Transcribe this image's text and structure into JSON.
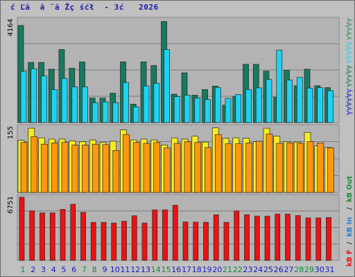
{
  "window": {
    "title": "ć Ľă  ă ¨ă Žç śćł  - 3ć   2026"
  },
  "chart_data": {
    "type": "bar",
    "categories": [
      "1",
      "2",
      "3",
      "4",
      "5",
      "6",
      "7",
      "8",
      "9",
      "10",
      "11",
      "12",
      "13",
      "14",
      "15",
      "16",
      "17",
      "18",
      "19",
      "20",
      "21",
      "22",
      "23",
      "24",
      "25",
      "26",
      "27",
      "28",
      "29",
      "30",
      "31"
    ],
    "weekend_categories": [
      "1",
      "7",
      "8",
      "14",
      "15",
      "21",
      "22",
      "28",
      "29"
    ],
    "panels": [
      {
        "max_label": "4164",
        "ylim": [
          0,
          4164
        ],
        "series": [
          {
            "color": "#177a60",
            "values": [
              4000,
              2480,
              2480,
              2200,
              3010,
              2240,
              2500,
              1010,
              1010,
              1210,
              2500,
              760,
              2500,
              2350,
              4164,
              1170,
              2050,
              1130,
              1360,
              1500,
              720,
              1080,
              2400,
              2400,
              2120,
              1050,
              2150,
              1520,
              2200,
              1520,
              1440
            ]
          },
          {
            "color": "#1ed3f2",
            "values": [
              2110,
              2220,
              1920,
              1360,
              1820,
              1470,
              1470,
              820,
              850,
              820,
              1650,
              650,
              1510,
              1620,
              3010,
              1070,
              1130,
              1010,
              950,
              1450,
              1000,
              1150,
              1360,
              1430,
              1780,
              2990,
              1750,
              1860,
              1420,
              1440,
              1310
            ]
          }
        ]
      },
      {
        "max_label": "155",
        "ylim": [
          0,
          155
        ],
        "series": [
          {
            "color": "#f7ec22",
            "values": [
              124,
              153,
              130,
              127,
              127,
              123,
              121,
              125,
              119,
              122,
              149,
              125,
              127,
              125,
              113,
              130,
              127,
              134,
              120,
              154,
              129,
              130,
              129,
              121,
              153,
              134,
              121,
              120,
              143,
              111,
              107
            ]
          },
          {
            "color": "#ff9810",
            "values": [
              119,
              133,
              115,
              118,
              119,
              113,
              113,
              115,
              114,
              100,
              138,
              119,
              117,
              119,
              106,
              117,
              121,
              119,
              107,
              138,
              116,
              116,
              118,
              122,
              139,
              117,
              118,
              117,
              121,
              118,
              106
            ]
          }
        ]
      },
      {
        "max_label": "6751",
        "ylim": [
          0,
          6751
        ],
        "series": [
          {
            "color": "#ee1111",
            "values": [
              6751,
              5300,
              5070,
              5070,
              5450,
              6000,
              5130,
              4060,
              4060,
              3990,
              4180,
              4770,
              3990,
              5400,
              5400,
              5890,
              4110,
              4090,
              4070,
              4870,
              4070,
              5280,
              4880,
              4730,
              4730,
              4950,
              4950,
              4800,
              4540,
              4540,
              4580
            ]
          }
        ]
      }
    ],
    "legends": {
      "top": [
        "ĂĄÂĄÂ",
        "ĂĄÂĄÂ",
        "ĂĄÂĄÂ",
        "ĂĄÂĄÂĂ"
      ],
      "bottom": [
        "kB F",
        "/",
        "kB In",
        "/",
        "kB Out"
      ]
    },
    "colors": {
      "background": "#c0c0c0",
      "panel_bg": "#b3b3b3",
      "weekday_label": "#1515c4",
      "weekend_label": "#0b8a3b"
    }
  }
}
